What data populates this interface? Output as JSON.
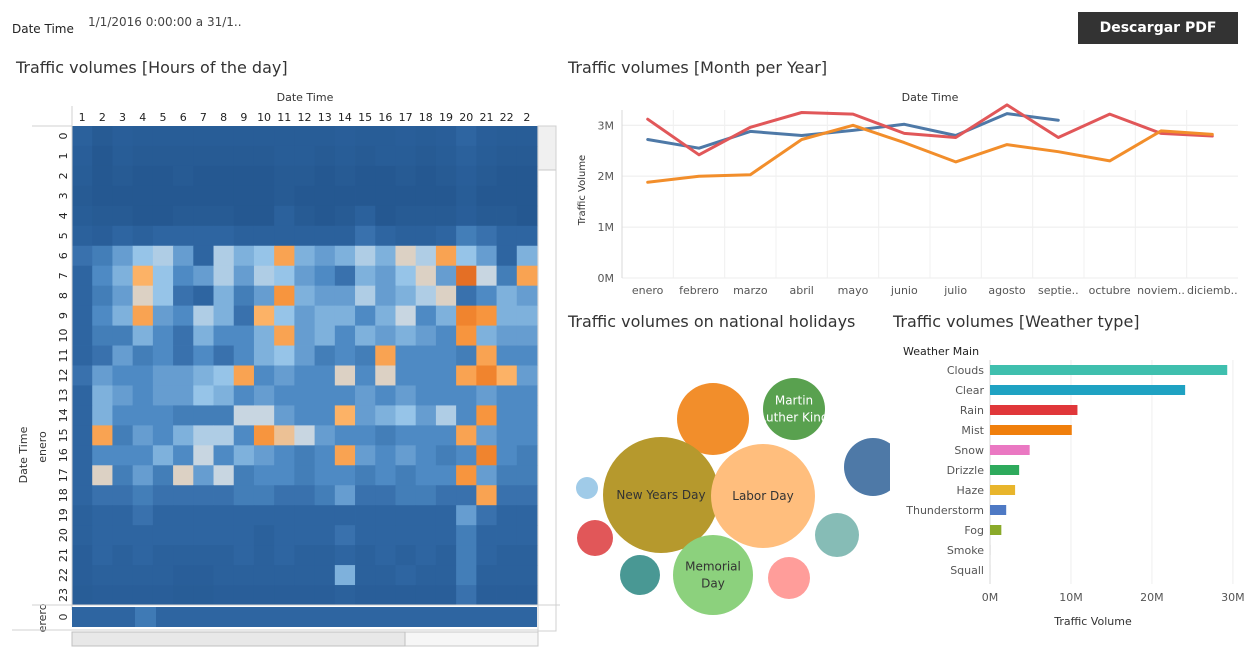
{
  "filter": {
    "label": "Date Time",
    "value": "1/1/2016 0:00:00 a 31/1.."
  },
  "toolbar": {
    "download_label": "Descargar PDF"
  },
  "titles": {
    "heatmap": "Traffic volumes [Hours of the day]",
    "line": "Traffic volumes [Month per Year]",
    "bubble": "Traffic volumes on national holidays",
    "weather": "Traffic volumes [Weather type]"
  },
  "chart_data": [
    {
      "type": "heatmap",
      "title": "Traffic volumes [Hours of the day]",
      "xlabel": "Date Time",
      "ylabel": "Date Time",
      "group_label": "enero",
      "next_group_label": "erero",
      "next_group_row_label": "0",
      "columns": [
        "1",
        "2",
        "3",
        "4",
        "5",
        "6",
        "7",
        "8",
        "9",
        "10",
        "11",
        "12",
        "13",
        "14",
        "15",
        "16",
        "17",
        "18",
        "19",
        "20",
        "21",
        "22",
        "2"
      ],
      "rows": [
        "0",
        "1",
        "2",
        "3",
        "4",
        "5",
        "6",
        "7",
        "8",
        "9",
        "10",
        "11",
        "12",
        "13",
        "14",
        "15",
        "16",
        "17",
        "18",
        "19",
        "20",
        "21",
        "22",
        "23"
      ],
      "scale": "relative traffic volume, 0 = lowest (dark blue) to 1 = highest (orange)",
      "values": [
        [
          0.15,
          0.08,
          0.12,
          0.1,
          0.1,
          0.1,
          0.1,
          0.1,
          0.1,
          0.1,
          0.1,
          0.1,
          0.1,
          0.12,
          0.1,
          0.1,
          0.12,
          0.1,
          0.12,
          0.2,
          0.12,
          0.1,
          0.1
        ],
        [
          0.12,
          0.05,
          0.1,
          0.08,
          0.08,
          0.08,
          0.08,
          0.08,
          0.08,
          0.08,
          0.1,
          0.1,
          0.08,
          0.1,
          0.08,
          0.1,
          0.1,
          0.08,
          0.1,
          0.15,
          0.1,
          0.08,
          0.08
        ],
        [
          0.1,
          0.05,
          0.08,
          0.05,
          0.05,
          0.08,
          0.05,
          0.05,
          0.05,
          0.05,
          0.08,
          0.08,
          0.05,
          0.08,
          0.05,
          0.05,
          0.08,
          0.05,
          0.08,
          0.12,
          0.08,
          0.05,
          0.05
        ],
        [
          0.08,
          0.05,
          0.05,
          0.05,
          0.05,
          0.05,
          0.05,
          0.05,
          0.05,
          0.05,
          0.08,
          0.05,
          0.05,
          0.05,
          0.05,
          0.05,
          0.05,
          0.05,
          0.05,
          0.1,
          0.05,
          0.05,
          0.05
        ],
        [
          0.1,
          0.08,
          0.08,
          0.05,
          0.05,
          0.08,
          0.08,
          0.08,
          0.05,
          0.05,
          0.15,
          0.08,
          0.05,
          0.08,
          0.15,
          0.05,
          0.08,
          0.08,
          0.08,
          0.12,
          0.08,
          0.08,
          0.05
        ],
        [
          0.15,
          0.12,
          0.2,
          0.15,
          0.2,
          0.2,
          0.2,
          0.2,
          0.15,
          0.15,
          0.15,
          0.15,
          0.15,
          0.15,
          0.25,
          0.2,
          0.15,
          0.15,
          0.2,
          0.3,
          0.25,
          0.2,
          0.2
        ],
        [
          0.25,
          0.3,
          0.4,
          0.5,
          0.55,
          0.4,
          0.2,
          0.55,
          0.45,
          0.5,
          0.8,
          0.45,
          0.4,
          0.45,
          0.55,
          0.45,
          0.65,
          0.55,
          0.8,
          0.5,
          0.4,
          0.2,
          0.45
        ],
        [
          0.2,
          0.35,
          0.45,
          0.75,
          0.5,
          0.35,
          0.4,
          0.55,
          0.4,
          0.55,
          0.5,
          0.4,
          0.35,
          0.25,
          0.45,
          0.4,
          0.5,
          0.65,
          0.4,
          0.95,
          0.6,
          0.3,
          0.8
        ],
        [
          0.2,
          0.3,
          0.4,
          0.65,
          0.5,
          0.25,
          0.2,
          0.45,
          0.3,
          0.4,
          0.85,
          0.45,
          0.4,
          0.4,
          0.55,
          0.4,
          0.45,
          0.55,
          0.65,
          0.25,
          0.35,
          0.45,
          0.4
        ],
        [
          0.2,
          0.35,
          0.45,
          0.8,
          0.4,
          0.35,
          0.55,
          0.45,
          0.25,
          0.75,
          0.5,
          0.4,
          0.45,
          0.45,
          0.35,
          0.45,
          0.6,
          0.35,
          0.45,
          0.9,
          0.85,
          0.45,
          0.45
        ],
        [
          0.2,
          0.3,
          0.3,
          0.45,
          0.35,
          0.25,
          0.45,
          0.35,
          0.35,
          0.45,
          0.8,
          0.4,
          0.45,
          0.35,
          0.45,
          0.4,
          0.45,
          0.4,
          0.35,
          0.85,
          0.45,
          0.4,
          0.4
        ],
        [
          0.2,
          0.25,
          0.4,
          0.3,
          0.35,
          0.25,
          0.35,
          0.25,
          0.35,
          0.45,
          0.5,
          0.4,
          0.3,
          0.35,
          0.3,
          0.8,
          0.35,
          0.35,
          0.35,
          0.3,
          0.8,
          0.35,
          0.35
        ],
        [
          0.25,
          0.4,
          0.35,
          0.35,
          0.4,
          0.4,
          0.45,
          0.5,
          0.8,
          0.35,
          0.4,
          0.35,
          0.35,
          0.65,
          0.35,
          0.65,
          0.35,
          0.35,
          0.35,
          0.8,
          0.9,
          0.75,
          0.4
        ],
        [
          0.2,
          0.45,
          0.4,
          0.35,
          0.4,
          0.4,
          0.5,
          0.45,
          0.35,
          0.4,
          0.35,
          0.35,
          0.35,
          0.35,
          0.4,
          0.35,
          0.4,
          0.35,
          0.35,
          0.35,
          0.4,
          0.35,
          0.35
        ],
        [
          0.2,
          0.45,
          0.35,
          0.35,
          0.35,
          0.3,
          0.3,
          0.3,
          0.6,
          0.6,
          0.4,
          0.35,
          0.35,
          0.75,
          0.4,
          0.45,
          0.5,
          0.4,
          0.55,
          0.35,
          0.85,
          0.35,
          0.35
        ],
        [
          0.2,
          0.8,
          0.3,
          0.4,
          0.35,
          0.45,
          0.55,
          0.55,
          0.35,
          0.85,
          0.7,
          0.6,
          0.4,
          0.35,
          0.35,
          0.3,
          0.35,
          0.35,
          0.35,
          0.8,
          0.4,
          0.35,
          0.35
        ],
        [
          0.2,
          0.35,
          0.35,
          0.35,
          0.45,
          0.35,
          0.6,
          0.35,
          0.45,
          0.4,
          0.35,
          0.3,
          0.35,
          0.8,
          0.4,
          0.35,
          0.4,
          0.35,
          0.3,
          0.35,
          0.9,
          0.35,
          0.3
        ],
        [
          0.2,
          0.65,
          0.3,
          0.4,
          0.3,
          0.65,
          0.4,
          0.6,
          0.3,
          0.35,
          0.35,
          0.3,
          0.35,
          0.35,
          0.3,
          0.35,
          0.3,
          0.35,
          0.35,
          0.85,
          0.4,
          0.3,
          0.3
        ],
        [
          0.2,
          0.25,
          0.25,
          0.3,
          0.25,
          0.25,
          0.25,
          0.25,
          0.3,
          0.3,
          0.25,
          0.25,
          0.3,
          0.4,
          0.25,
          0.25,
          0.3,
          0.3,
          0.25,
          0.25,
          0.8,
          0.25,
          0.25
        ],
        [
          0.15,
          0.2,
          0.2,
          0.25,
          0.2,
          0.2,
          0.2,
          0.2,
          0.2,
          0.2,
          0.2,
          0.2,
          0.2,
          0.2,
          0.2,
          0.2,
          0.2,
          0.2,
          0.2,
          0.4,
          0.25,
          0.2,
          0.2
        ],
        [
          0.15,
          0.2,
          0.2,
          0.2,
          0.2,
          0.2,
          0.2,
          0.2,
          0.2,
          0.15,
          0.2,
          0.2,
          0.2,
          0.25,
          0.2,
          0.2,
          0.2,
          0.2,
          0.2,
          0.3,
          0.2,
          0.2,
          0.2
        ],
        [
          0.12,
          0.2,
          0.15,
          0.2,
          0.15,
          0.15,
          0.15,
          0.15,
          0.2,
          0.15,
          0.2,
          0.15,
          0.15,
          0.2,
          0.15,
          0.2,
          0.15,
          0.2,
          0.15,
          0.3,
          0.2,
          0.15,
          0.15
        ],
        [
          0.12,
          0.15,
          0.15,
          0.15,
          0.15,
          0.12,
          0.12,
          0.15,
          0.15,
          0.15,
          0.15,
          0.15,
          0.15,
          0.45,
          0.15,
          0.15,
          0.2,
          0.15,
          0.15,
          0.3,
          0.15,
          0.15,
          0.15
        ],
        [
          0.1,
          0.12,
          0.12,
          0.12,
          0.12,
          0.1,
          0.1,
          0.12,
          0.12,
          0.12,
          0.12,
          0.12,
          0.12,
          0.15,
          0.12,
          0.12,
          0.12,
          0.12,
          0.12,
          0.25,
          0.12,
          0.12,
          0.12
        ]
      ]
    },
    {
      "type": "line",
      "title": "Traffic volumes [Month per Year]",
      "xlabel": "Date Time",
      "ylabel": "Traffic Volume",
      "ylim": [
        0,
        3300000
      ],
      "yticks": [
        0,
        1000000,
        2000000,
        3000000
      ],
      "ytick_labels": [
        "0M",
        "1M",
        "2M",
        "3M"
      ],
      "categories": [
        "enero",
        "febrero",
        "marzo",
        "abril",
        "mayo",
        "junio",
        "julio",
        "agosto",
        "septie..",
        "octubre",
        "noviem..",
        "diciemb.."
      ],
      "series": [
        {
          "color": "#4e79a7",
          "values": [
            2720000,
            2550000,
            2880000,
            2800000,
            2900000,
            3020000,
            2800000,
            3230000,
            3100000,
            null,
            null,
            null
          ]
        },
        {
          "color": "#e15759",
          "values": [
            3120000,
            2420000,
            2960000,
            3250000,
            3220000,
            2840000,
            2760000,
            3400000,
            2760000,
            3220000,
            2840000,
            2790000
          ]
        },
        {
          "color": "#f28e2b",
          "values": [
            1880000,
            2000000,
            2030000,
            2720000,
            3000000,
            2660000,
            2280000,
            2620000,
            2480000,
            2300000,
            2890000,
            2820000
          ]
        }
      ]
    },
    {
      "type": "bubble",
      "title": "Traffic volumes on national holidays",
      "bubbles": [
        {
          "label": "",
          "value": 36,
          "color": "#f28e2b"
        },
        {
          "label": "Martin Luther King",
          "value": 31,
          "color": "#59a14f"
        },
        {
          "label": "",
          "value": 29,
          "color": "#4e79a7"
        },
        {
          "label": "",
          "value": 11,
          "color": "#a0cbe8"
        },
        {
          "label": "New Years Day",
          "value": 58,
          "color": "#b6992d"
        },
        {
          "label": "Labor Day",
          "value": 52,
          "color": "#ffbe7d"
        },
        {
          "label": "",
          "value": 18,
          "color": "#e15759"
        },
        {
          "label": "",
          "value": 22,
          "color": "#86bcb6"
        },
        {
          "label": "",
          "value": 20,
          "color": "#499894"
        },
        {
          "label": "Memorial Day",
          "value": 40,
          "color": "#8cd17d"
        },
        {
          "label": "",
          "value": 21,
          "color": "#ff9d9a"
        }
      ]
    },
    {
      "type": "bar",
      "orientation": "horizontal",
      "title": "Traffic volumes [Weather type]",
      "category_header": "Weather Main",
      "xlabel": "Traffic Volume",
      "xlim": [
        0,
        31000000
      ],
      "xticks": [
        0,
        10000000,
        20000000,
        30000000
      ],
      "xtick_labels": [
        "0M",
        "10M",
        "20M",
        "30M"
      ],
      "categories": [
        "Clouds",
        "Clear",
        "Rain",
        "Mist",
        "Snow",
        "Drizzle",
        "Haze",
        "Thunderstorm",
        "Fog",
        "Smoke",
        "Squall"
      ],
      "values": [
        29300000,
        24100000,
        10800000,
        10100000,
        4900000,
        3600000,
        3100000,
        2000000,
        1400000,
        50000,
        20000
      ],
      "colors": [
        "#3fbfae",
        "#1fa2c2",
        "#e0373a",
        "#f07f0c",
        "#ea78c2",
        "#2eaa5c",
        "#e8b52c",
        "#4e79c4",
        "#8aaa2a",
        "#cccccc",
        "#cccccc"
      ]
    }
  ]
}
